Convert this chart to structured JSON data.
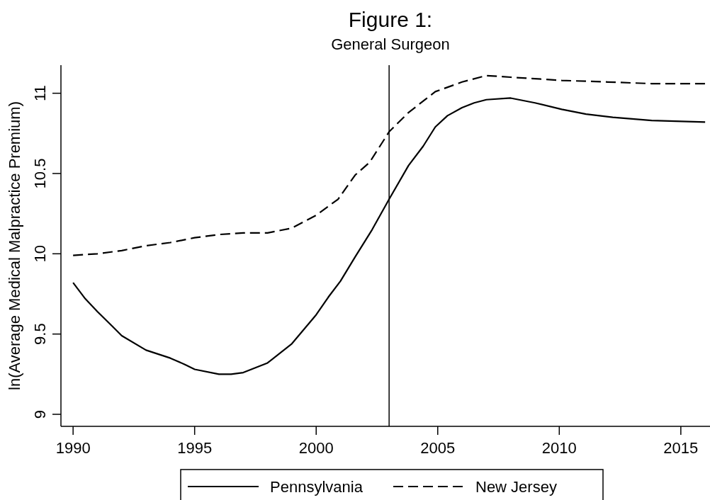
{
  "chart_data": {
    "type": "line",
    "title": "Figure 1:",
    "subtitle": "General Surgeon",
    "ylabel": "ln(Average Medical Malpractice Premium)",
    "xlim": [
      1989.5,
      2016.2
    ],
    "xticks": [
      1990,
      1995,
      2000,
      2005,
      2010,
      2015
    ],
    "ylim": [
      8.925,
      11.175
    ],
    "yticks": [
      9,
      9.5,
      10,
      10.5,
      11
    ],
    "grid": false,
    "legend": "bottom",
    "marker": "none",
    "ref_lines": [
      {
        "axis": "x",
        "value": 2003,
        "color": "#000000"
      }
    ],
    "series": [
      {
        "name": "Pennsylvania",
        "color": "#000000",
        "line_style": "solid",
        "x": [
          1990,
          1990.5,
          1991,
          1991.6,
          1992,
          1993,
          1994,
          1994.6,
          1995,
          1996,
          1996.5,
          1997,
          1998,
          1999,
          2000,
          2000.5,
          2001,
          2001.6,
          2002.3,
          2003,
          2003.8,
          2004.4,
          2004.9,
          2005.4,
          2006,
          2006.5,
          2007,
          2008,
          2009,
          2010.1,
          2011.1,
          2012.2,
          2013.8,
          2016
        ],
        "values": [
          9.82,
          9.72,
          9.64,
          9.55,
          9.49,
          9.4,
          9.35,
          9.31,
          9.28,
          9.25,
          9.25,
          9.26,
          9.32,
          9.44,
          9.62,
          9.73,
          9.83,
          9.98,
          10.15,
          10.34,
          10.55,
          10.67,
          10.79,
          10.86,
          10.91,
          10.94,
          10.96,
          10.97,
          10.94,
          10.9,
          10.87,
          10.85,
          10.83,
          10.82
        ]
      },
      {
        "name": "New Jersey",
        "color": "#000000",
        "line_style": "dashed",
        "x": [
          1990,
          1991,
          1992,
          1993,
          1994,
          1995,
          1996,
          1997,
          1998,
          1999,
          2000,
          2000.9,
          2001.6,
          2002.2,
          2003,
          2003.8,
          2004.9,
          2006,
          2007,
          2008,
          2010.1,
          2012,
          2013.8,
          2016
        ],
        "values": [
          9.99,
          10,
          10.02,
          10.05,
          10.07,
          10.1,
          10.12,
          10.13,
          10.13,
          10.16,
          10.24,
          10.34,
          10.49,
          10.57,
          10.76,
          10.88,
          11.01,
          11.07,
          11.11,
          11.1,
          11.08,
          11.07,
          11.06,
          11.06
        ]
      }
    ]
  }
}
